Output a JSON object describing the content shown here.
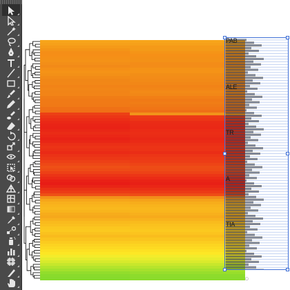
{
  "toolbar": {
    "tools": [
      {
        "name": "selection-tool-icon",
        "glyph": "arrow",
        "active": true
      },
      {
        "name": "direct-selection-tool-icon",
        "glyph": "arrow-hollow"
      },
      {
        "name": "magic-wand-tool-icon",
        "glyph": "wand"
      },
      {
        "name": "lasso-tool-icon",
        "glyph": "lasso"
      },
      {
        "name": "pen-tool-icon",
        "glyph": "pen"
      },
      {
        "name": "type-tool-icon",
        "glyph": "T"
      },
      {
        "name": "line-segment-tool-icon",
        "glyph": "line"
      },
      {
        "name": "rectangle-tool-icon",
        "glyph": "rect"
      },
      {
        "name": "paintbrush-tool-icon",
        "glyph": "brush"
      },
      {
        "name": "pencil-tool-icon",
        "glyph": "pencil"
      },
      {
        "name": "blob-brush-tool-icon",
        "glyph": "blob"
      },
      {
        "name": "eraser-tool-icon",
        "glyph": "eraser"
      },
      {
        "name": "rotate-tool-icon",
        "glyph": "rotate"
      },
      {
        "name": "scale-tool-icon",
        "glyph": "scale"
      },
      {
        "name": "width-tool-icon",
        "glyph": "width"
      },
      {
        "name": "free-transform-tool-icon",
        "glyph": "transform"
      },
      {
        "name": "shape-builder-tool-icon",
        "glyph": "shape"
      },
      {
        "name": "perspective-grid-tool-icon",
        "glyph": "grid"
      },
      {
        "name": "mesh-tool-icon",
        "glyph": "mesh"
      },
      {
        "name": "gradient-tool-icon",
        "glyph": "gradient"
      },
      {
        "name": "eyedropper-tool-icon",
        "glyph": "eyedropper"
      },
      {
        "name": "blend-tool-icon",
        "glyph": "blend"
      },
      {
        "name": "symbol-sprayer-tool-icon",
        "glyph": "spray"
      },
      {
        "name": "column-graph-tool-icon",
        "glyph": "graph"
      },
      {
        "name": "artboard-tool-icon",
        "glyph": "artboard"
      },
      {
        "name": "slice-tool-icon",
        "glyph": "slice"
      },
      {
        "name": "hand-tool-icon",
        "glyph": "hand"
      }
    ]
  },
  "heatmap": {
    "rows": 86,
    "columns": 2,
    "row_colors": [
      [
        "#f7a51a",
        "#f7a51a"
      ],
      [
        "#f6a01a",
        "#f6a01a"
      ],
      [
        "#f59a18",
        "#f59a18"
      ],
      [
        "#f49417",
        "#f49a18"
      ],
      [
        "#f58e17",
        "#f59417"
      ],
      [
        "#f68e17",
        "#f69017"
      ],
      [
        "#f59017",
        "#f49017"
      ],
      [
        "#f49217",
        "#f39117"
      ],
      [
        "#f38e18",
        "#f38c18"
      ],
      [
        "#f28a18",
        "#f38c18"
      ],
      [
        "#f48f17",
        "#f49217"
      ],
      [
        "#f59317",
        "#f59317"
      ],
      [
        "#f39017",
        "#f28e17"
      ],
      [
        "#f28b17",
        "#f38c18"
      ],
      [
        "#f18717",
        "#f28a17"
      ],
      [
        "#f28717",
        "#f28717"
      ],
      [
        "#f28317",
        "#f28317"
      ],
      [
        "#f28617",
        "#f28617"
      ],
      [
        "#f18417",
        "#f38a17"
      ],
      [
        "#f28417",
        "#f28717"
      ],
      [
        "#f07d16",
        "#f27f16"
      ],
      [
        "#f07a16",
        "#f07a16"
      ],
      [
        "#f07a16",
        "#f07d16"
      ],
      [
        "#f07916",
        "#ef7916"
      ],
      [
        "#ef7116",
        "#f07516"
      ],
      [
        "#f06f16",
        "#ee7016"
      ],
      [
        "#ec4015",
        "#f2931a"
      ],
      [
        "#ec3616",
        "#ec3a16"
      ],
      [
        "#eb2e16",
        "#ec3616"
      ],
      [
        "#ea2816",
        "#ea2c16"
      ],
      [
        "#e92416",
        "#ea2a16"
      ],
      [
        "#e92216",
        "#ea2816"
      ],
      [
        "#e92716",
        "#eb2c16"
      ],
      [
        "#ea2c16",
        "#eb2e16"
      ],
      [
        "#ea2716",
        "#ea2c16"
      ],
      [
        "#e82216",
        "#e92816"
      ],
      [
        "#e92616",
        "#ea2a16"
      ],
      [
        "#eb2f16",
        "#eb3016"
      ],
      [
        "#ec3416",
        "#ec3416"
      ],
      [
        "#eb3016",
        "#ec3316"
      ],
      [
        "#ea2a16",
        "#ea2d16"
      ],
      [
        "#eb3216",
        "#ec3516"
      ],
      [
        "#ec3816",
        "#ed3a16"
      ],
      [
        "#ed4016",
        "#ed3c16"
      ],
      [
        "#ee4816",
        "#ee4416"
      ],
      [
        "#ef5016",
        "#ee4c16"
      ],
      [
        "#ee4b16",
        "#ee4a16"
      ],
      [
        "#ed4016",
        "#ed4216"
      ],
      [
        "#eb3416",
        "#ec3616"
      ],
      [
        "#ea2a16",
        "#eb2c16"
      ],
      [
        "#e92016",
        "#e92416"
      ],
      [
        "#e81c16",
        "#e82016"
      ],
      [
        "#e92416",
        "#ea2616"
      ],
      [
        "#eb3216",
        "#eb3016"
      ],
      [
        "#ec3c16",
        "#ec3a16"
      ],
      [
        "#ee5016",
        "#ee4c16"
      ],
      [
        "#f3911a",
        "#f28c1a"
      ],
      [
        "#f6a61a",
        "#f5a31a"
      ],
      [
        "#f8b01c",
        "#f7ad1b"
      ],
      [
        "#f9b51c",
        "#f8b31c"
      ],
      [
        "#f9b91d",
        "#f9b71d"
      ],
      [
        "#f8b41c",
        "#f9b61c"
      ],
      [
        "#f7ac1b",
        "#f8b01c"
      ],
      [
        "#f6a81b",
        "#f7aa1b"
      ],
      [
        "#f8b11c",
        "#f8b21c"
      ],
      [
        "#f9ba1d",
        "#f9bb1d"
      ],
      [
        "#fabf1e",
        "#fac11e"
      ],
      [
        "#fbc61f",
        "#fbc51f"
      ],
      [
        "#fbc91f",
        "#fbc91f"
      ],
      [
        "#fac21e",
        "#fbc41e"
      ],
      [
        "#f9bb1d",
        "#f9bd1d"
      ],
      [
        "#fac31e",
        "#fac51e"
      ],
      [
        "#fbcb1f",
        "#fbcd20"
      ],
      [
        "#fcd321",
        "#fcd521"
      ],
      [
        "#fcd922",
        "#fdda22"
      ],
      [
        "#fde022",
        "#fde123"
      ],
      [
        "#fde624",
        "#fde725"
      ],
      [
        "#f4ec2a",
        "#f3ec2b"
      ],
      [
        "#e6ec2c",
        "#e8ec2c"
      ],
      [
        "#d7ea2c",
        "#daea2c"
      ],
      [
        "#c6e72c",
        "#c8e72c"
      ],
      [
        "#b3e42c",
        "#b7e42c"
      ],
      [
        "#a3e12c",
        "#a6e12c"
      ],
      [
        "#92dd2c",
        "#98de2c"
      ],
      [
        "#89db2c",
        "#8ddc2c"
      ],
      [
        "#86da2c",
        "#8bdb2c"
      ]
    ]
  },
  "labels": {
    "gene_names": [
      "PAB",
      "ALE",
      "TR",
      "A",
      "TIA"
    ]
  },
  "watermark": {
    "icon": "chat-bubble-icon"
  }
}
